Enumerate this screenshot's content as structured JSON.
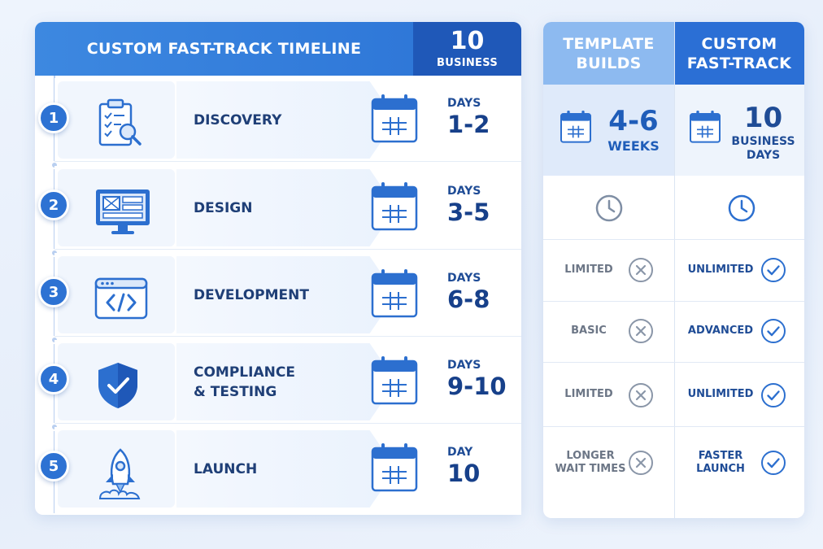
{
  "timeline": {
    "title": "CUSTOM FAST-TRACK TIMELINE",
    "badge_number": "10",
    "badge_label": "BUSINESS",
    "steps": [
      {
        "number": "1",
        "label_lines": [
          "DISCOVERY"
        ],
        "days_label": "DAYS",
        "days_value": "1-2",
        "icon": "clipboard-search-icon"
      },
      {
        "number": "2",
        "label_lines": [
          "DESIGN"
        ],
        "days_label": "DAYS",
        "days_value": "3-5",
        "icon": "monitor-layout-icon"
      },
      {
        "number": "3",
        "label_lines": [
          "DEVELOPMENT"
        ],
        "days_label": "DAYS",
        "days_value": "6-8",
        "icon": "code-window-icon"
      },
      {
        "number": "4",
        "label_lines": [
          "COMPLIANCE",
          "& TESTING"
        ],
        "days_label": "DAYS",
        "days_value": "9-10",
        "icon": "shield-check-icon"
      },
      {
        "number": "5",
        "label_lines": [
          "LAUNCH"
        ],
        "days_label": "DAY",
        "days_value": "10",
        "icon": "rocket-icon"
      }
    ]
  },
  "comparison": {
    "template": {
      "header_lines": [
        "TEMPLATE",
        "BUILDS"
      ],
      "duration_value": "4-6",
      "duration_unit": "WEEKS"
    },
    "custom": {
      "header_lines": [
        "CUSTOM",
        "FAST-TRACK"
      ],
      "duration_value": "10",
      "duration_unit_lines": [
        "BUSINESS",
        "DAYS"
      ]
    },
    "rows": [
      {
        "template_lines": [
          "LIMITED"
        ],
        "custom_lines": [
          "UNLIMITED"
        ]
      },
      {
        "template_lines": [
          "BASIC"
        ],
        "custom_lines": [
          "ADVANCED"
        ]
      },
      {
        "template_lines": [
          "LIMITED"
        ],
        "custom_lines": [
          "UNLIMITED"
        ]
      },
      {
        "template_lines": [
          "LONGER",
          "WAIT TIMES"
        ],
        "custom_lines": [
          "FASTER",
          "LAUNCH"
        ]
      }
    ]
  },
  "colors": {
    "primary": "#2b6fd5",
    "dark": "#1f58b8",
    "light": "#8dbaf0",
    "text_dark": "#1f3f77",
    "muted": "#6c7686"
  }
}
